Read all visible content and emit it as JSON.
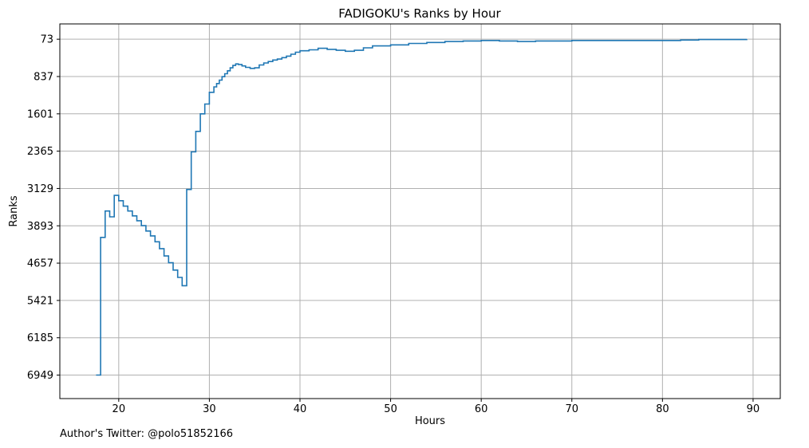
{
  "chart_data": {
    "type": "line",
    "step": true,
    "title": "FADIGOKU's Ranks by Hour",
    "xlabel": "Hours",
    "ylabel": "Ranks",
    "xlim": [
      13.5,
      93
    ],
    "ylim": [
      7430,
      -240
    ],
    "y_inverted": true,
    "grid": true,
    "line_color": "#1f77b4",
    "x_ticks": [
      20,
      30,
      40,
      50,
      60,
      70,
      80,
      90
    ],
    "y_ticks": [
      73,
      837,
      1601,
      2365,
      3129,
      3893,
      4657,
      5421,
      6185,
      6949
    ],
    "series": [
      {
        "x": [
          17.5,
          18.0,
          18.5,
          19.0,
          19.5,
          20.0,
          20.5,
          21.0,
          21.5,
          22.0,
          22.5,
          23.0,
          23.5,
          24.0,
          24.5,
          25.0,
          25.5,
          26.0,
          26.5,
          27.0,
          27.5,
          28.0,
          28.5,
          29.0,
          29.5,
          30.0,
          30.5,
          30.8,
          31.1,
          31.4,
          31.7,
          32.0,
          32.3,
          32.6,
          32.9,
          33.2,
          33.6,
          34.0,
          34.5,
          35.0,
          35.5,
          36.0,
          36.5,
          37.0,
          37.5,
          38.0,
          38.5,
          39.0,
          39.5,
          40.0,
          41.0,
          42.0,
          43.0,
          44.0,
          45.0,
          46.0,
          47.0,
          48.0,
          50.0,
          52.0,
          54.0,
          56.0,
          58.0,
          60.0,
          62.0,
          64.0,
          66.0,
          70.0,
          78.0,
          82.0,
          84.0,
          89.3
        ],
        "y": [
          6949,
          4130,
          3590,
          3710,
          3270,
          3380,
          3490,
          3590,
          3690,
          3790,
          3890,
          4000,
          4100,
          4220,
          4360,
          4510,
          4650,
          4800,
          4950,
          5120,
          3150,
          2380,
          1960,
          1600,
          1400,
          1160,
          1050,
          980,
          910,
          840,
          780,
          720,
          660,
          610,
          580,
          590,
          620,
          650,
          670,
          660,
          600,
          560,
          530,
          500,
          480,
          450,
          420,
          380,
          340,
          310,
          290,
          260,
          280,
          300,
          320,
          300,
          250,
          210,
          190,
          160,
          140,
          120,
          110,
          100,
          110,
          120,
          110,
          100,
          100,
          90,
          80,
          73
        ]
      }
    ]
  },
  "footer": {
    "author": "Author's Twitter: @polo51852166"
  }
}
